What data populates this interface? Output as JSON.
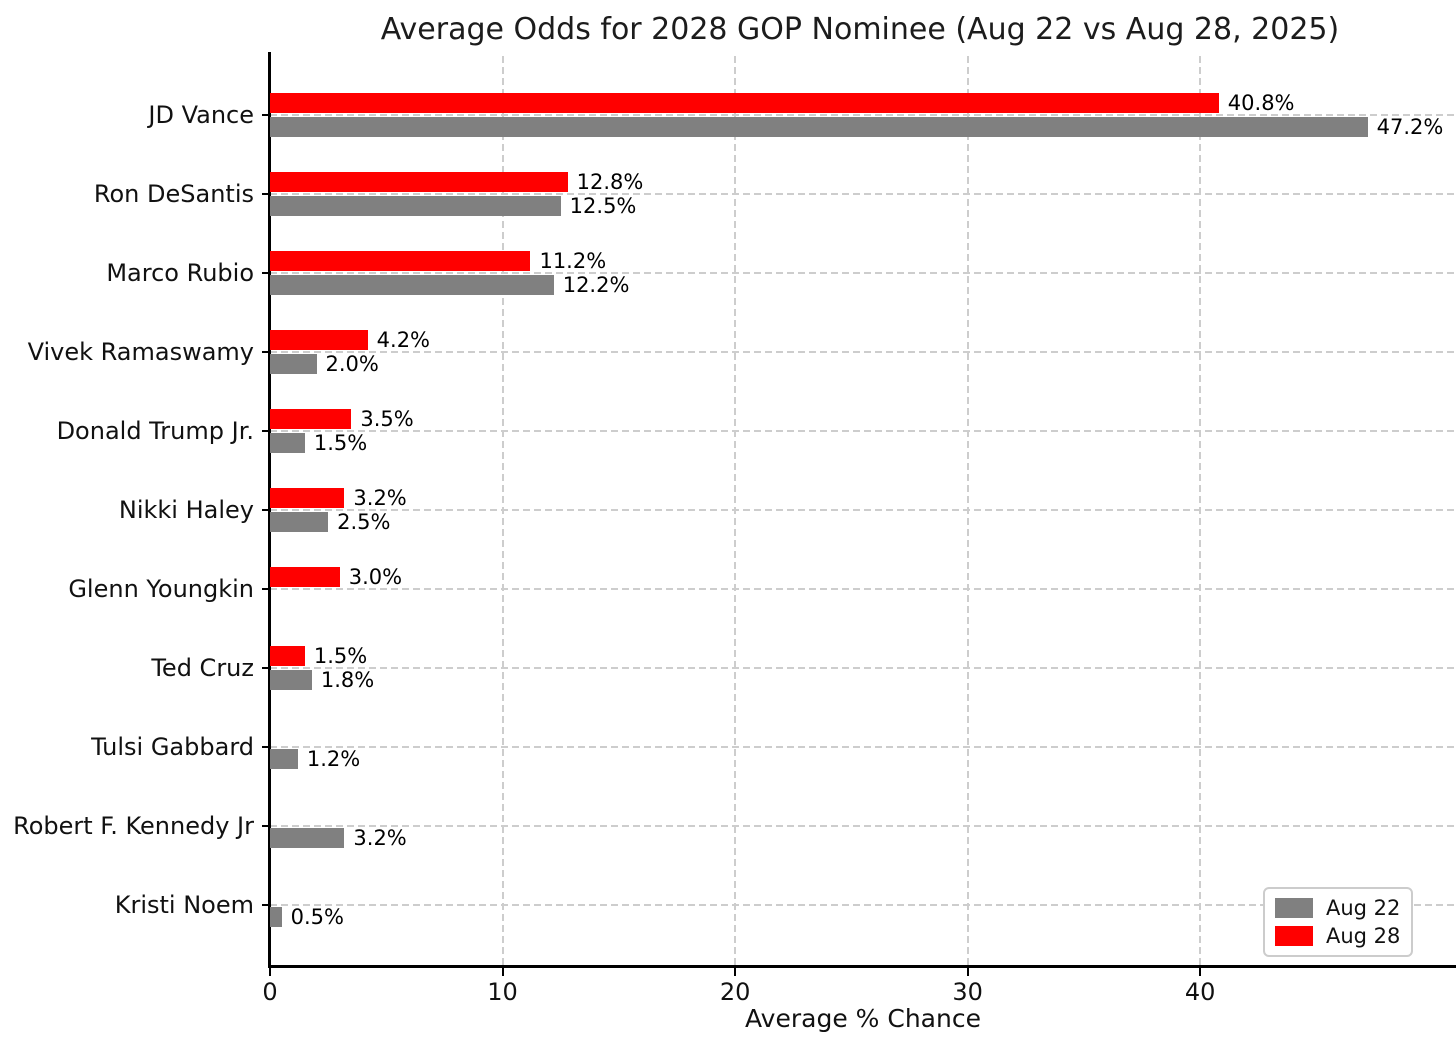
{
  "title": "Average Odds for 2028 GOP Nominee (Aug 22 vs Aug 28, 2025)",
  "xlabel": "Average % Chance",
  "colors": {
    "aug22_gray": "#808080",
    "aug28_red": "#ff0000",
    "grid": "#cdcdcd",
    "spine": "#000000",
    "text": "#1c1c1c",
    "background": "#ffffff",
    "legend_border": "#cccccc"
  },
  "legend": {
    "items": [
      {
        "label": "Aug 22",
        "color": "#808080"
      },
      {
        "label": "Aug 28",
        "color": "#ff0000"
      }
    ]
  },
  "chart_data": {
    "type": "bar",
    "orientation": "horizontal",
    "title": "Average Odds for 2028 GOP Nominee (Aug 22 vs Aug 28, 2025)",
    "xlabel": "Average % Chance",
    "ylabel": "",
    "categories": [
      "JD Vance",
      "Ron DeSantis",
      "Marco Rubio",
      "Vivek Ramaswamy",
      "Donald Trump Jr.",
      "Nikki Haley",
      "Glenn Youngkin",
      "Ted Cruz",
      "Tulsi Gabbard",
      "Robert F. Kennedy Jr",
      "Kristi Noem"
    ],
    "series": [
      {
        "name": "Aug 22",
        "color": "#808080",
        "values": [
          47.2,
          12.5,
          12.2,
          2.0,
          1.5,
          2.5,
          0,
          1.8,
          1.2,
          3.2,
          0.5
        ],
        "value_labels": [
          "47.2%",
          "12.5%",
          "12.2%",
          "2.0%",
          "1.5%",
          "2.5%",
          "",
          "1.8%",
          "1.2%",
          "3.2%",
          "0.5%"
        ]
      },
      {
        "name": "Aug 28",
        "color": "#ff0000",
        "values": [
          40.8,
          12.8,
          11.2,
          4.2,
          3.5,
          3.2,
          3.0,
          1.5,
          0,
          0,
          0
        ],
        "value_labels": [
          "40.8%",
          "12.8%",
          "11.2%",
          "4.2%",
          "3.5%",
          "3.2%",
          "3.0%",
          "1.5%",
          "",
          "",
          ""
        ]
      }
    ],
    "xticks": [
      0,
      10,
      20,
      30,
      40
    ],
    "xtick_labels": [
      "0",
      "10",
      "20",
      "30",
      "40"
    ],
    "xlim": [
      0,
      51
    ],
    "grid": true,
    "grid_style": "dashed",
    "legend_position": "lower right"
  }
}
